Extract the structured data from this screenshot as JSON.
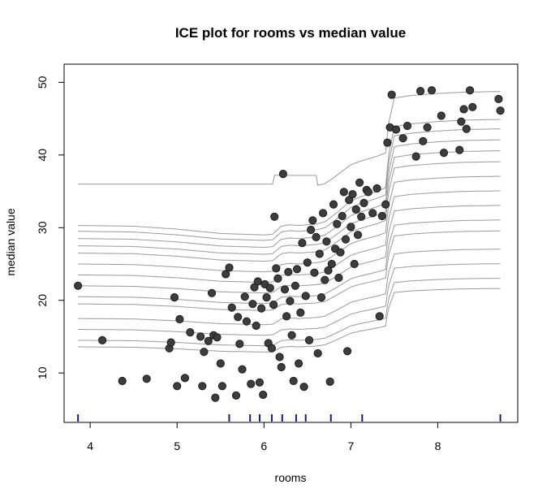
{
  "chart_data": {
    "type": "line",
    "title": "ICE plot for rooms vs median value",
    "xlabel": "rooms",
    "ylabel": "median value",
    "xlim": [
      3.7,
      8.92
    ],
    "ylim": [
      3.2,
      52.5
    ],
    "x_ticks": [
      4,
      5,
      6,
      7,
      8
    ],
    "y_ticks": [
      10,
      20,
      30,
      40,
      50
    ],
    "grid": false,
    "legend": "none",
    "colors": {
      "curves": "#6f6f6f",
      "points": "#3d3d3d",
      "rug": "#1a1a7a",
      "axis": "#000000"
    },
    "centered_curve": {
      "x": [
        3.86,
        4.5,
        5.0,
        5.5,
        6.0,
        6.1,
        6.2,
        6.3,
        6.4,
        6.5,
        6.6,
        6.7,
        6.8,
        6.9,
        7.0,
        7.1,
        7.2,
        7.3,
        7.4,
        7.43,
        7.5,
        7.7,
        8.0,
        8.3,
        8.72
      ],
      "y": [
        0,
        -0.1,
        -0.5,
        -1.1,
        -1.3,
        -1.2,
        -0.1,
        0.1,
        0.0,
        0.1,
        0.2,
        0.5,
        1.4,
        2.4,
        3.4,
        3.9,
        4.3,
        4.7,
        5.2,
        9.5,
        13.6,
        14.0,
        14.3,
        14.5,
        14.6
      ]
    },
    "ice_offsets": [
      -8.4,
      -7.5,
      -6.0,
      -4.5,
      -2.5,
      -1.5,
      0.0,
      1.5,
      3.0,
      4.5,
      5.5,
      6.5,
      7.5,
      8.3
    ],
    "observations": [
      {
        "x": 3.86,
        "y": 22.0
      },
      {
        "x": 4.14,
        "y": 14.5
      },
      {
        "x": 4.37,
        "y": 8.9
      },
      {
        "x": 4.65,
        "y": 9.2
      },
      {
        "x": 4.91,
        "y": 13.4
      },
      {
        "x": 4.93,
        "y": 14.2
      },
      {
        "x": 4.97,
        "y": 20.4
      },
      {
        "x": 5.0,
        "y": 8.2
      },
      {
        "x": 5.03,
        "y": 17.4
      },
      {
        "x": 5.09,
        "y": 9.3
      },
      {
        "x": 5.15,
        "y": 15.6
      },
      {
        "x": 5.27,
        "y": 15.0
      },
      {
        "x": 5.29,
        "y": 8.2
      },
      {
        "x": 5.31,
        "y": 12.9
      },
      {
        "x": 5.36,
        "y": 14.4
      },
      {
        "x": 5.4,
        "y": 21.0
      },
      {
        "x": 5.42,
        "y": 15.2
      },
      {
        "x": 5.44,
        "y": 6.6
      },
      {
        "x": 5.46,
        "y": 14.9
      },
      {
        "x": 5.5,
        "y": 11.3
      },
      {
        "x": 5.52,
        "y": 8.2
      },
      {
        "x": 5.56,
        "y": 23.6
      },
      {
        "x": 5.6,
        "y": 24.5
      },
      {
        "x": 5.63,
        "y": 19.0
      },
      {
        "x": 5.68,
        "y": 6.9
      },
      {
        "x": 5.7,
        "y": 17.7
      },
      {
        "x": 5.72,
        "y": 14.0
      },
      {
        "x": 5.75,
        "y": 10.5
      },
      {
        "x": 5.78,
        "y": 20.5
      },
      {
        "x": 5.8,
        "y": 17.1
      },
      {
        "x": 5.85,
        "y": 8.5
      },
      {
        "x": 5.87,
        "y": 19.5
      },
      {
        "x": 5.89,
        "y": 21.8
      },
      {
        "x": 5.91,
        "y": 16.5
      },
      {
        "x": 5.93,
        "y": 22.6
      },
      {
        "x": 5.95,
        "y": 8.7
      },
      {
        "x": 5.97,
        "y": 18.9
      },
      {
        "x": 5.99,
        "y": 7.0
      },
      {
        "x": 6.01,
        "y": 22.2
      },
      {
        "x": 6.03,
        "y": 20.4
      },
      {
        "x": 6.05,
        "y": 14.1
      },
      {
        "x": 6.07,
        "y": 21.7
      },
      {
        "x": 6.09,
        "y": 13.4
      },
      {
        "x": 6.11,
        "y": 19.4
      },
      {
        "x": 6.12,
        "y": 31.5
      },
      {
        "x": 6.14,
        "y": 24.4
      },
      {
        "x": 6.16,
        "y": 23.0
      },
      {
        "x": 6.18,
        "y": 12.2
      },
      {
        "x": 6.2,
        "y": 10.8
      },
      {
        "x": 6.22,
        "y": 37.4
      },
      {
        "x": 6.24,
        "y": 21.5
      },
      {
        "x": 6.26,
        "y": 17.8
      },
      {
        "x": 6.28,
        "y": 23.9
      },
      {
        "x": 6.3,
        "y": 19.9
      },
      {
        "x": 6.32,
        "y": 15.2
      },
      {
        "x": 6.34,
        "y": 8.9
      },
      {
        "x": 6.36,
        "y": 22.0
      },
      {
        "x": 6.38,
        "y": 24.3
      },
      {
        "x": 6.4,
        "y": 11.3
      },
      {
        "x": 6.42,
        "y": 18.3
      },
      {
        "x": 6.44,
        "y": 27.9
      },
      {
        "x": 6.46,
        "y": 8.1
      },
      {
        "x": 6.48,
        "y": 20.6
      },
      {
        "x": 6.5,
        "y": 25.2
      },
      {
        "x": 6.52,
        "y": 14.5
      },
      {
        "x": 6.54,
        "y": 29.7
      },
      {
        "x": 6.56,
        "y": 31.0
      },
      {
        "x": 6.58,
        "y": 23.8
      },
      {
        "x": 6.6,
        "y": 28.7
      },
      {
        "x": 6.62,
        "y": 12.7
      },
      {
        "x": 6.64,
        "y": 26.4
      },
      {
        "x": 6.66,
        "y": 20.4
      },
      {
        "x": 6.68,
        "y": 32.0
      },
      {
        "x": 6.7,
        "y": 22.8
      },
      {
        "x": 6.72,
        "y": 28.1
      },
      {
        "x": 6.74,
        "y": 24.1
      },
      {
        "x": 6.76,
        "y": 8.8
      },
      {
        "x": 6.78,
        "y": 25.0
      },
      {
        "x": 6.8,
        "y": 33.2
      },
      {
        "x": 6.82,
        "y": 27.1
      },
      {
        "x": 6.84,
        "y": 30.5
      },
      {
        "x": 6.86,
        "y": 23.1
      },
      {
        "x": 6.88,
        "y": 26.6
      },
      {
        "x": 6.9,
        "y": 31.6
      },
      {
        "x": 6.92,
        "y": 34.9
      },
      {
        "x": 6.94,
        "y": 28.4
      },
      {
        "x": 6.96,
        "y": 13.0
      },
      {
        "x": 6.98,
        "y": 33.8
      },
      {
        "x": 7.0,
        "y": 30.1
      },
      {
        "x": 7.02,
        "y": 34.6
      },
      {
        "x": 7.04,
        "y": 25.0
      },
      {
        "x": 7.06,
        "y": 32.5
      },
      {
        "x": 7.08,
        "y": 29.0
      },
      {
        "x": 7.1,
        "y": 36.2
      },
      {
        "x": 7.12,
        "y": 31.5
      },
      {
        "x": 7.15,
        "y": 33.4
      },
      {
        "x": 7.18,
        "y": 35.2
      },
      {
        "x": 7.2,
        "y": 34.9
      },
      {
        "x": 7.25,
        "y": 32.0
      },
      {
        "x": 7.3,
        "y": 35.4
      },
      {
        "x": 7.33,
        "y": 17.8
      },
      {
        "x": 7.36,
        "y": 31.6
      },
      {
        "x": 7.4,
        "y": 33.2
      },
      {
        "x": 7.42,
        "y": 41.7
      },
      {
        "x": 7.45,
        "y": 43.8
      },
      {
        "x": 7.47,
        "y": 48.3
      },
      {
        "x": 7.52,
        "y": 43.5
      },
      {
        "x": 7.6,
        "y": 42.3
      },
      {
        "x": 7.65,
        "y": 44.0
      },
      {
        "x": 7.75,
        "y": 39.8
      },
      {
        "x": 7.8,
        "y": 48.8
      },
      {
        "x": 7.83,
        "y": 41.9
      },
      {
        "x": 7.88,
        "y": 43.8
      },
      {
        "x": 7.93,
        "y": 48.9
      },
      {
        "x": 8.04,
        "y": 45.4
      },
      {
        "x": 8.07,
        "y": 40.3
      },
      {
        "x": 8.25,
        "y": 40.7
      },
      {
        "x": 8.27,
        "y": 44.6
      },
      {
        "x": 8.3,
        "y": 46.3
      },
      {
        "x": 8.33,
        "y": 43.6
      },
      {
        "x": 8.37,
        "y": 48.9
      },
      {
        "x": 8.4,
        "y": 46.6
      },
      {
        "x": 8.7,
        "y": 47.7
      },
      {
        "x": 8.72,
        "y": 46.1
      }
    ],
    "rug": [
      3.86,
      5.6,
      5.84,
      5.95,
      6.09,
      6.21,
      6.37,
      6.48,
      6.77,
      7.13,
      8.72
    ]
  }
}
